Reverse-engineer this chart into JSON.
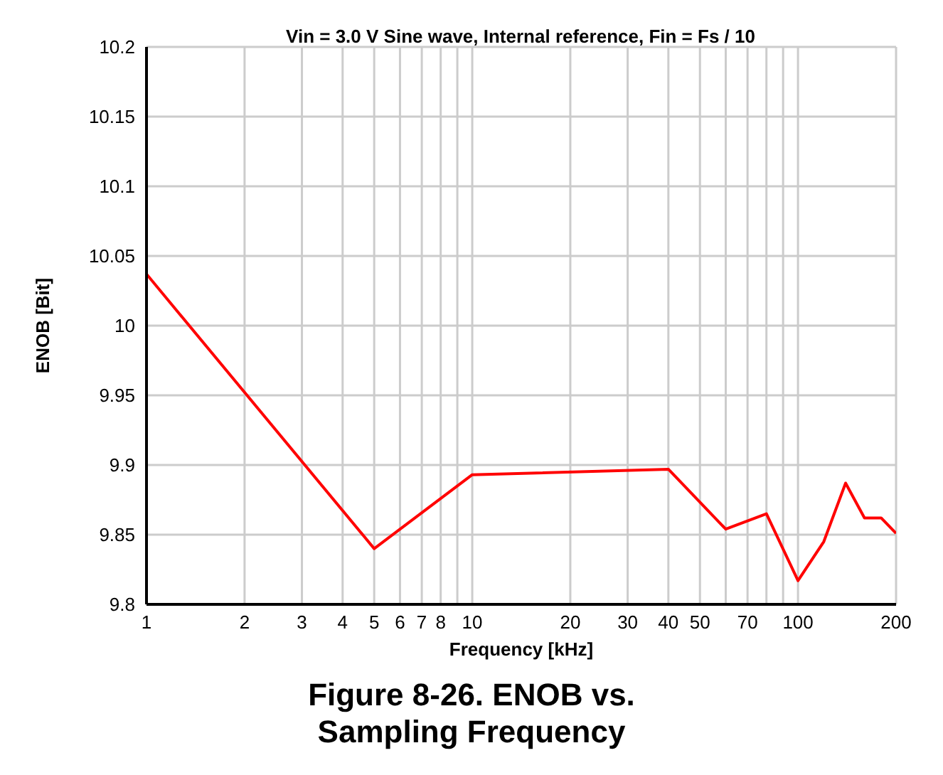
{
  "chart_data": {
    "type": "line",
    "title": "Vin = 3.0 V Sine wave, Internal reference, Fin = Fs / 10",
    "xlabel": "Frequency [kHz]",
    "ylabel": "ENOB [Bit]",
    "annotations": [
      "Figure 8-26. ENOB vs. Sampling Frequency"
    ],
    "x": [
      1,
      5,
      10,
      40,
      60,
      80,
      100,
      120,
      140,
      160,
      180,
      200
    ],
    "series": [
      {
        "color": "#ff0000",
        "values": [
          10.037,
          9.84,
          9.893,
          9.897,
          9.854,
          9.865,
          9.817,
          9.845,
          9.887,
          9.862,
          9.862,
          9.851
        ]
      }
    ],
    "log": "x",
    "xlim": [
      1,
      200
    ],
    "xticks": [
      1,
      2,
      3,
      4,
      5,
      6,
      7,
      8,
      {
        "value": 9,
        "label": null
      },
      10,
      20,
      30,
      40,
      50,
      {
        "value": 60,
        "label": null
      },
      70,
      {
        "value": 80,
        "label": null
      },
      {
        "value": 90,
        "label": null
      },
      100,
      200
    ],
    "ylim": [
      9.8,
      10.2
    ],
    "yticks": [
      9.8,
      9.85,
      9.9,
      9.95,
      10,
      10.05,
      10.1,
      10.15,
      10.2
    ],
    "grid": true,
    "marker": "none",
    "line_style": "solid"
  }
}
